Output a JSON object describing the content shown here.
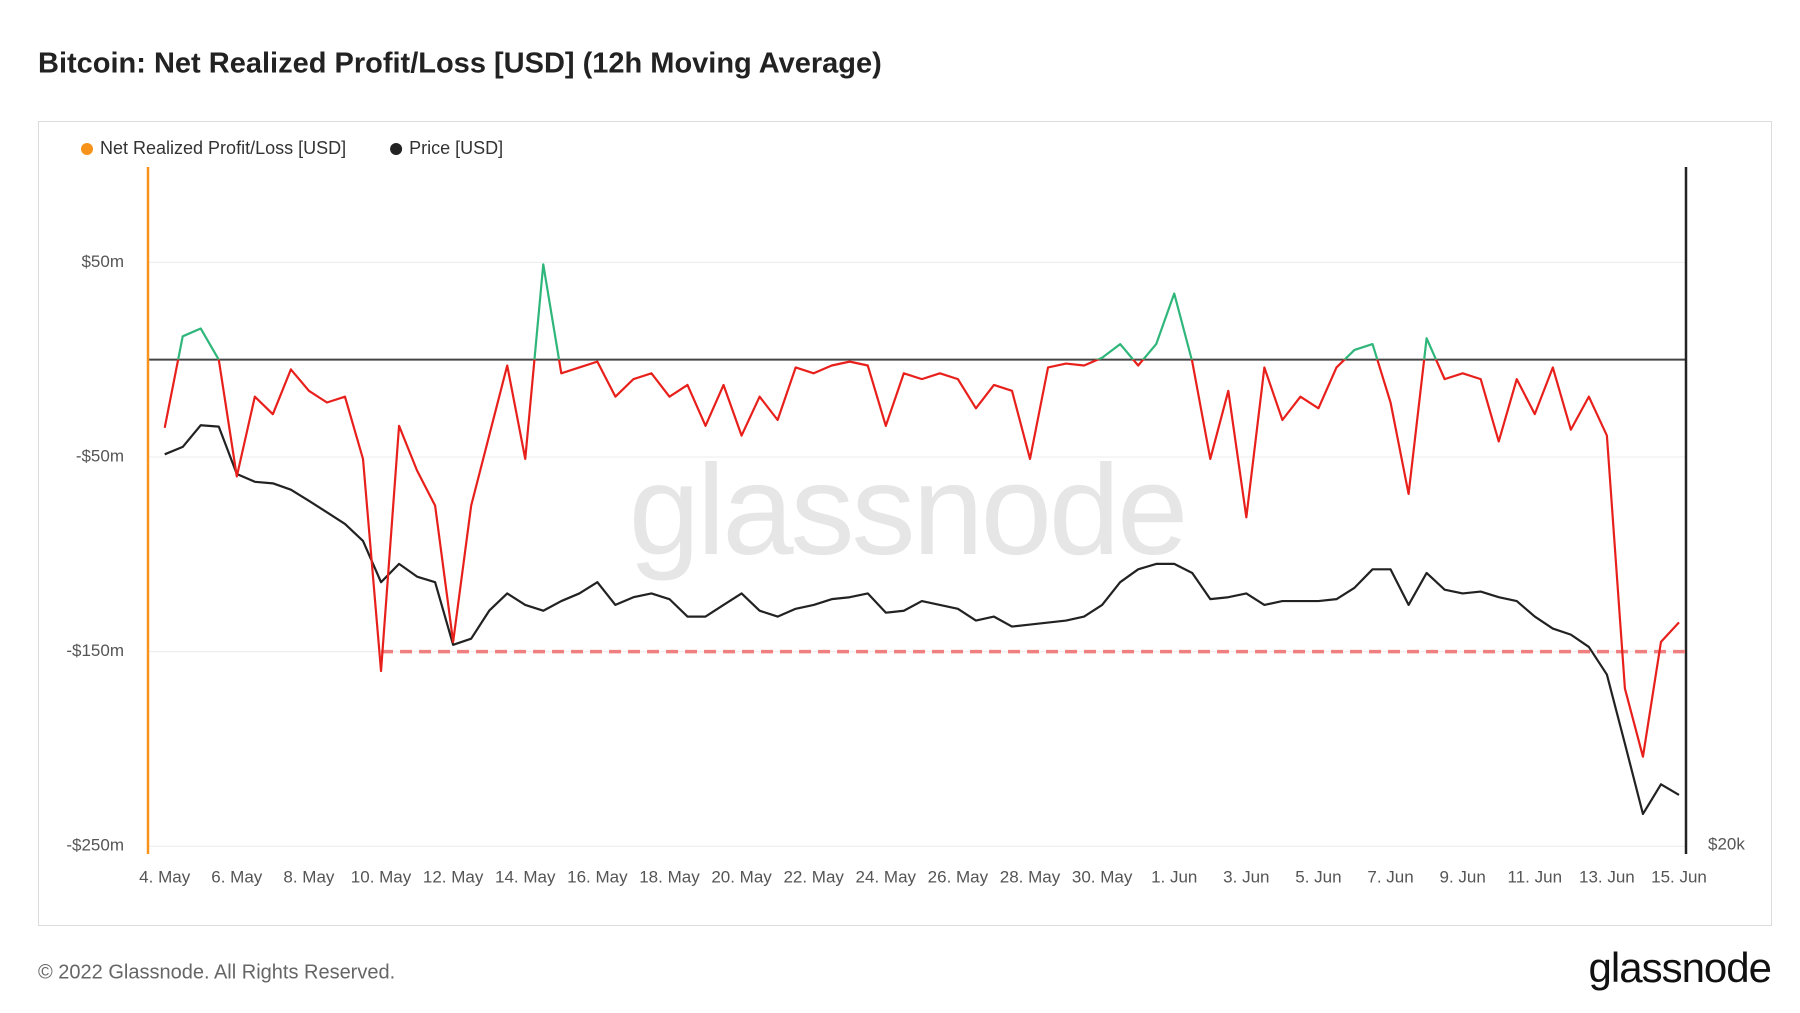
{
  "title": "Bitcoin: Net Realized Profit/Loss [USD] (12h Moving Average)",
  "footer": "© 2022 Glassnode. All Rights Reserved.",
  "logo": "glassnode",
  "chart_data": {
    "type": "line",
    "watermark": "glassnode",
    "legend": "top-left",
    "grid": true,
    "zero_line": true,
    "categories": [
      "4. May",
      null,
      null,
      null,
      "6. May",
      null,
      null,
      null,
      "8. May",
      null,
      null,
      null,
      "10. May",
      null,
      null,
      null,
      "12. May",
      null,
      null,
      null,
      "14. May",
      null,
      null,
      null,
      "16. May",
      null,
      null,
      null,
      "18. May",
      null,
      null,
      null,
      "20. May",
      null,
      null,
      null,
      "22. May",
      null,
      null,
      null,
      "24. May",
      null,
      null,
      null,
      "26. May",
      null,
      null,
      null,
      "28. May",
      null,
      null,
      null,
      "30. May",
      null,
      null,
      null,
      "1. Jun",
      null,
      null,
      null,
      "3. Jun",
      null,
      null,
      null,
      "5. Jun",
      null,
      null,
      null,
      "7. Jun",
      null,
      null,
      null,
      "9. Jun",
      null,
      null,
      null,
      "11. Jun",
      null,
      null,
      null,
      "13. Jun",
      null,
      null,
      null,
      "15. Jun"
    ],
    "ylim": [
      -254,
      99
    ],
    "yticks": [
      {
        "value": -250,
        "label": "-$250m"
      },
      {
        "value": -150,
        "label": "-$150m"
      },
      {
        "value": -50,
        "label": "-$50m"
      },
      {
        "value": 50,
        "label": "$50m"
      }
    ],
    "y2lim": [
      19700,
      64000
    ],
    "y2scale": "log",
    "y2ticks": [
      {
        "value": 20000,
        "label": "$20k"
      }
    ],
    "reference_line": {
      "value": -150,
      "color": "#f08080"
    },
    "series": [
      {
        "name": "Net Realized Profit/Loss [USD]",
        "color": "#f7931a",
        "positive_color": "#2fb67a",
        "negative_color": "#e8201c",
        "values": [
          -35,
          12,
          16,
          0,
          -60,
          -19,
          -28,
          -5,
          -16,
          -22,
          -19,
          -51,
          -160,
          -34,
          -57,
          -75,
          -145,
          -75,
          -39,
          -3,
          -51,
          49,
          -7,
          -4,
          -1,
          -19,
          -10,
          -7,
          -19,
          -13,
          -34,
          -13,
          -39,
          -19,
          -31,
          -4,
          -7,
          -3,
          -1,
          -3,
          -34,
          -7,
          -10,
          -7,
          -10,
          -25,
          -13,
          -16,
          -51,
          -4,
          -2,
          -3,
          1,
          8,
          -3,
          8,
          34,
          -1,
          -51,
          -16,
          -81,
          -4,
          -31,
          -19,
          -25,
          -4,
          5,
          8,
          -22,
          -69,
          11,
          -10,
          -7,
          -10,
          -42,
          -10,
          -28,
          -4,
          -36,
          -19,
          -39,
          -169,
          -204,
          -145,
          -135
        ]
      },
      {
        "name": "Price [USD]",
        "color": "#222222",
        "axis": "y2",
        "values": [
          39100,
          39600,
          41100,
          41000,
          37800,
          37300,
          37200,
          36800,
          36100,
          35400,
          34700,
          33700,
          31400,
          32400,
          31700,
          31400,
          28200,
          28500,
          29900,
          30800,
          30200,
          29900,
          30400,
          30800,
          31400,
          30200,
          30600,
          30800,
          30500,
          29600,
          29600,
          30200,
          30800,
          29900,
          29600,
          30000,
          30200,
          30500,
          30600,
          30800,
          29800,
          29900,
          30400,
          30200,
          30000,
          29400,
          29600,
          29100,
          29200,
          29300,
          29400,
          29600,
          30200,
          31400,
          32100,
          32400,
          32400,
          31900,
          30500,
          30600,
          30800,
          30200,
          30400,
          30400,
          30400,
          30500,
          31100,
          32100,
          32100,
          30200,
          31900,
          31000,
          30800,
          30900,
          30600,
          30400,
          29600,
          29000,
          28700,
          28100,
          26800,
          23800,
          21100,
          22200,
          21800
        ]
      }
    ]
  }
}
